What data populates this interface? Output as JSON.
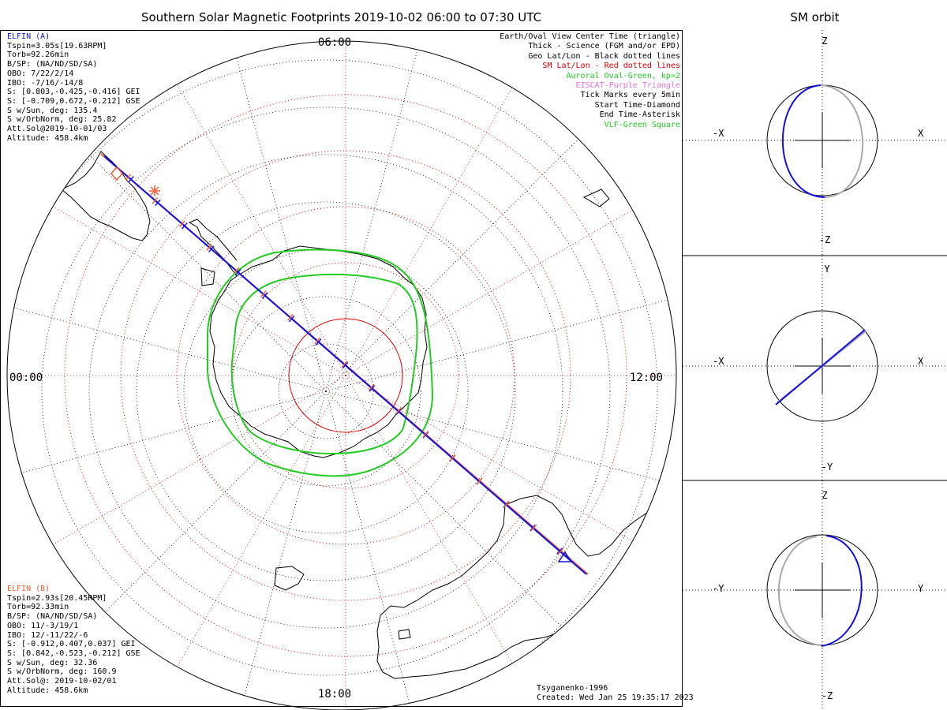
{
  "title": "Southern Solar Magnetic Footprints 2019-10-02 06:00 to 07:30 UTC",
  "orbit_title": "SM orbit",
  "clock": {
    "top": "06:00",
    "left": "00:00",
    "right": "12:00",
    "bottom": "18:00"
  },
  "elfin_a": {
    "name": "ELFIN (A)",
    "lines": [
      "Tspin=3.05s[19.63RPM]",
      "Torb=92.26min",
      "B/SP: (NA/ND/SD/SA)",
      "OBO: 7/22/2/14",
      "IBO: -7/16/-14/8",
      "S: [0.803,-0.425,-0.416] GEI",
      "S: [-0.709,0.672,-0.212] GSE",
      "S w/Sun, deg: 135.4",
      "S w/OrbNorm, deg: 25.82",
      "Att.Sol@2019-10-01/03",
      "Altitude: 458.4km"
    ]
  },
  "elfin_b": {
    "name": "ELFIN (B)",
    "lines": [
      "Tspin=2.93s[20.45RPM]",
      "Torb=92.33min",
      "B/SP: (NA/ND/SD/SA)",
      "OBO: 11/-3/19/1",
      "IBO: 12/-11/22/-6",
      "S: [-0.912,0.407,0.037] GEI",
      "S: [0.842,-0.523,-0.212] GSE",
      "S w/Sun, deg: 32.36",
      "S w/OrbNorm, deg: 160.9",
      "Att.Sol@: 2019-10-02/01",
      "Altitude: 458.6km"
    ]
  },
  "legend": [
    {
      "text": "Earth/Oval View Center Time (triangle)",
      "color": "#000000"
    },
    {
      "text": "Thick - Science (FGM and/or EPD)",
      "color": "#000000"
    },
    {
      "text": "Geo Lat/Lon - Black dotted lines",
      "color": "#000000"
    },
    {
      "text": "SM Lat/Lon - Red dotted lines",
      "color": "#e00000"
    },
    {
      "text": "Auroral Oval-Green, kp=2",
      "color": "#22cc22"
    },
    {
      "text": "EISCAT-Purple Triangle",
      "color": "#e070e0"
    },
    {
      "text": "Tick Marks every 5min",
      "color": "#000000"
    },
    {
      "text": "Start Time-Diamond",
      "color": "#000000"
    },
    {
      "text": "End Time-Asterisk",
      "color": "#000000"
    },
    {
      "text": "VLF-Green Square",
      "color": "#22cc22"
    }
  ],
  "footer": {
    "model": "Tsyganenko-1996",
    "created": "Created: Wed Jan 25 19:35:17 2023"
  },
  "colors": {
    "elfin_a": "#1010e0",
    "elfin_b": "#f0603a",
    "oval": "#22cc22",
    "sm_grid": "#e00000",
    "geo_grid": "#000000",
    "orbit_gray": "#aaaaaa"
  },
  "orbit_panels": [
    {
      "top": "Z",
      "bottom": "-Z",
      "left": "-X",
      "right": "X"
    },
    {
      "top": "Y",
      "bottom": "-Y",
      "left": "-X",
      "right": "X"
    },
    {
      "top": "Z",
      "bottom": "-Z",
      "left": "-Y",
      "right": "Y"
    }
  ]
}
